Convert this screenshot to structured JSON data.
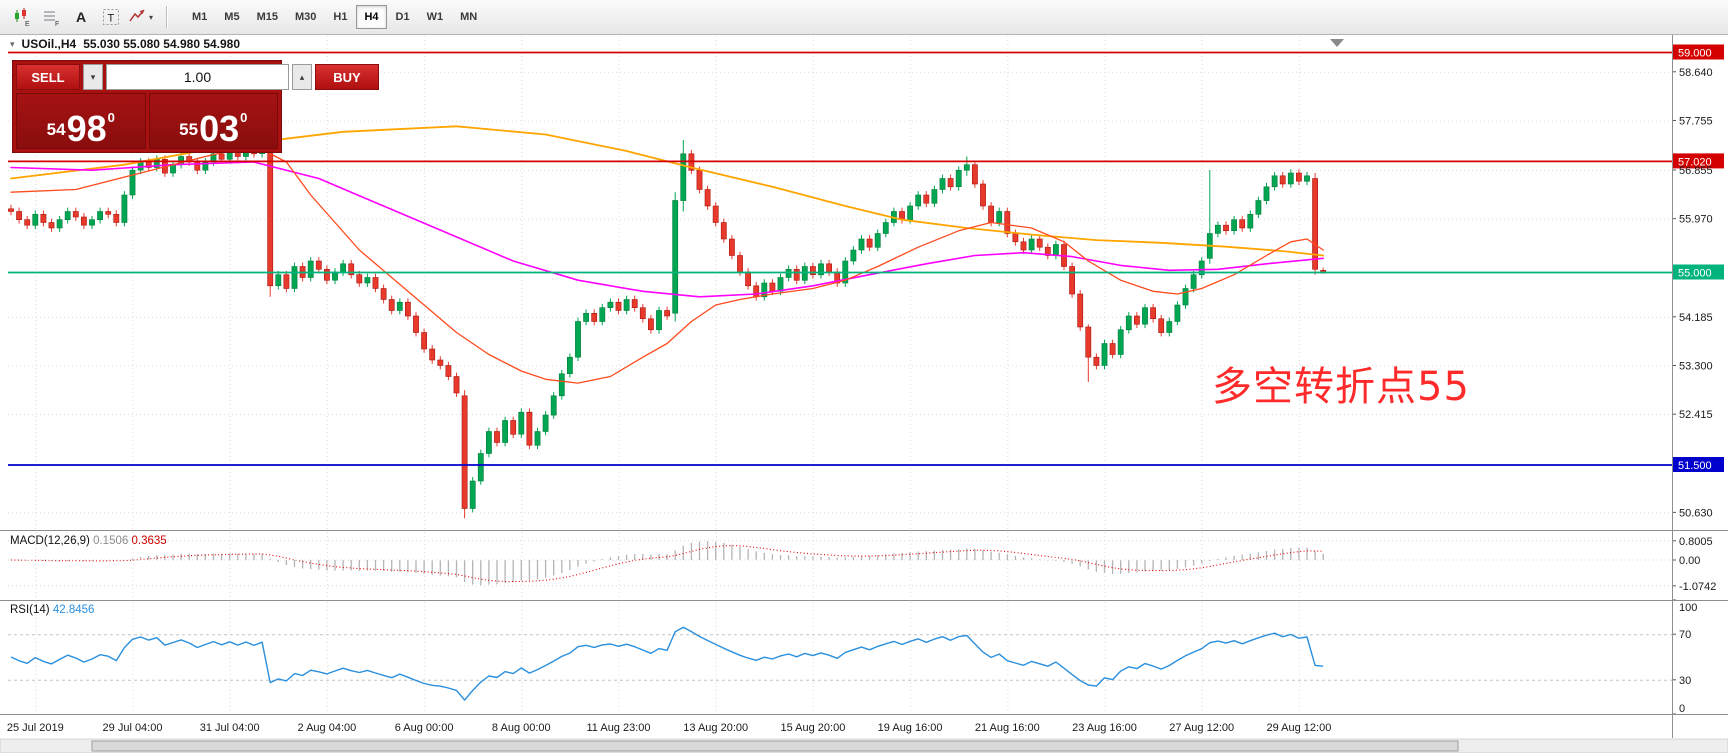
{
  "toolbar": {
    "timeframes": [
      "M1",
      "M5",
      "M15",
      "M30",
      "H1",
      "H4",
      "D1",
      "W1",
      "MN"
    ],
    "active_timeframe": "H4",
    "icons": [
      {
        "name": "chart-icon",
        "letter": "E"
      },
      {
        "name": "grid-icon",
        "letter": "F"
      },
      {
        "name": "font-icon",
        "letter": "A"
      },
      {
        "name": "text-icon",
        "letter": "T"
      },
      {
        "name": "indicators-icon",
        "letter": "▾"
      }
    ]
  },
  "chart_header": {
    "collapse_icon": "▾",
    "symbol": "USOil.,H4",
    "ohlc": "55.030 55.080 54.980 54.980"
  },
  "trade_panel": {
    "sell_label": "SELL",
    "buy_label": "BUY",
    "volume": "1.00",
    "spinner_down_icon": "▾",
    "spinner_up_icon": "▴",
    "sell_price": {
      "int": "54",
      "main": "98",
      "sup": "0"
    },
    "buy_price": {
      "int": "55",
      "main": "03",
      "sup": "0"
    }
  },
  "annotation": {
    "text": "多空转折点55",
    "color": "#ff2a2a"
  },
  "indicators": {
    "macd": {
      "name": "MACD(12,26,9)",
      "value_main": "0.1506",
      "value_signal": "0.3635",
      "axis_labels": [
        "0.8005",
        "0.00",
        "-1.0742"
      ]
    },
    "rsi": {
      "name": "RSI(14)",
      "value": "42.8456",
      "axis_labels": [
        "100",
        "70",
        "30",
        "0"
      ],
      "levels": [
        70,
        30
      ]
    }
  },
  "chart_data": {
    "type": "candlestick",
    "symbol": "USOil",
    "timeframe": "H4",
    "bull_color": "#00a651",
    "bear_color": "#e8392d",
    "price_axis_ticks": [
      "58.640",
      "57.755",
      "56.855",
      "55.970",
      "54.185",
      "53.300",
      "52.415",
      "50.630"
    ],
    "hlines": [
      {
        "price": 59.0,
        "label": "59.000",
        "color": "#d40000"
      },
      {
        "price": 57.02,
        "label": "57.020",
        "color": "#d40000"
      },
      {
        "price": 55.0,
        "label": "55.000",
        "color": "#00b37c"
      },
      {
        "price": 51.5,
        "label": "51.500",
        "color": "#0000cc"
      }
    ],
    "time_labels": [
      {
        "i": 3,
        "label": "25 Jul 2019"
      },
      {
        "i": 15,
        "label": "29 Jul 04:00"
      },
      {
        "i": 27,
        "label": "31 Jul 04:00"
      },
      {
        "i": 39,
        "label": "2 Aug 04:00"
      },
      {
        "i": 51,
        "label": "6 Aug 00:00"
      },
      {
        "i": 63,
        "label": "8 Aug 00:00"
      },
      {
        "i": 75,
        "label": "11 Aug 23:00"
      },
      {
        "i": 87,
        "label": "13 Aug 20:00"
      },
      {
        "i": 99,
        "label": "15 Aug 20:00"
      },
      {
        "i": 111,
        "label": "19 Aug 16:00"
      },
      {
        "i": 123,
        "label": "21 Aug 16:00"
      },
      {
        "i": 135,
        "label": "23 Aug 16:00"
      },
      {
        "i": 147,
        "label": "27 Aug 12:00"
      },
      {
        "i": 159,
        "label": "29 Aug 12:00"
      }
    ],
    "closes": [
      56.1,
      55.95,
      55.85,
      56.05,
      55.9,
      55.8,
      55.95,
      56.1,
      56.0,
      55.85,
      55.95,
      56.1,
      56.05,
      55.9,
      56.4,
      56.85,
      57.0,
      56.9,
      57.05,
      56.8,
      56.95,
      57.1,
      57.0,
      56.85,
      57.0,
      57.15,
      57.05,
      57.2,
      57.1,
      57.25,
      57.15,
      57.3,
      54.75,
      54.95,
      54.7,
      55.1,
      54.9,
      55.2,
      55.05,
      54.85,
      55.0,
      55.15,
      54.95,
      54.8,
      54.9,
      54.7,
      54.5,
      54.3,
      54.45,
      54.2,
      53.9,
      53.6,
      53.4,
      53.3,
      53.1,
      52.8,
      50.7,
      51.2,
      51.7,
      52.1,
      51.9,
      52.3,
      52.05,
      52.45,
      51.85,
      52.1,
      52.4,
      52.75,
      53.15,
      53.45,
      54.1,
      54.25,
      54.1,
      54.35,
      54.45,
      54.3,
      54.5,
      54.35,
      54.15,
      53.95,
      54.3,
      54.2,
      56.3,
      57.15,
      56.85,
      56.5,
      56.2,
      55.9,
      55.6,
      55.3,
      55.0,
      54.75,
      54.55,
      54.8,
      54.65,
      54.9,
      55.05,
      54.85,
      55.1,
      54.95,
      55.15,
      55.0,
      54.8,
      55.2,
      55.4,
      55.6,
      55.45,
      55.7,
      55.9,
      56.1,
      55.95,
      56.2,
      56.4,
      56.25,
      56.5,
      56.7,
      56.55,
      56.85,
      56.95,
      56.6,
      56.2,
      55.9,
      56.1,
      55.7,
      55.55,
      55.4,
      55.6,
      55.45,
      55.3,
      55.5,
      55.1,
      54.6,
      54.0,
      53.45,
      53.3,
      53.7,
      53.5,
      53.95,
      54.2,
      54.05,
      54.35,
      54.15,
      53.9,
      54.1,
      54.4,
      54.7,
      54.95,
      55.2,
      55.7,
      55.85,
      55.75,
      55.95,
      55.8,
      56.05,
      56.3,
      56.55,
      56.75,
      56.6,
      56.8,
      56.65,
      56.75,
      55.05,
      54.98
    ],
    "candle_overrides": {
      "32": [
        57.25,
        57.4,
        54.55,
        54.75
      ],
      "56": [
        52.75,
        52.85,
        50.52,
        50.7
      ],
      "82": [
        54.25,
        56.45,
        54.1,
        56.3
      ],
      "83": [
        56.3,
        57.4,
        56.1,
        57.15
      ],
      "118": [
        56.85,
        57.1,
        56.75,
        56.95
      ],
      "133": [
        54.0,
        54.05,
        53.0,
        53.45
      ],
      "148": [
        55.25,
        56.85,
        55.15,
        55.7
      ],
      "161": [
        56.7,
        56.8,
        54.95,
        55.05
      ],
      "162": [
        55.03,
        55.08,
        54.98,
        54.98
      ]
    },
    "ma_lines": [
      {
        "name": "ma-slow-orange",
        "color": "#ffa500",
        "width": 1.8,
        "points": [
          [
            0,
            56.7
          ],
          [
            14,
            56.95
          ],
          [
            27,
            57.3
          ],
          [
            41,
            57.55
          ],
          [
            55,
            57.65
          ],
          [
            66,
            57.5
          ],
          [
            76,
            57.2
          ],
          [
            84,
            56.9
          ],
          [
            94,
            56.55
          ],
          [
            103,
            56.2
          ],
          [
            110,
            55.95
          ],
          [
            118,
            55.8
          ],
          [
            126,
            55.68
          ],
          [
            134,
            55.58
          ],
          [
            142,
            55.53
          ],
          [
            150,
            55.46
          ],
          [
            157,
            55.38
          ],
          [
            162,
            55.3
          ]
        ]
      },
      {
        "name": "ma-medium-magenta",
        "color": "#ff00ff",
        "width": 1.6,
        "points": [
          [
            0,
            56.9
          ],
          [
            10,
            56.85
          ],
          [
            20,
            56.95
          ],
          [
            30,
            57.0
          ],
          [
            38,
            56.7
          ],
          [
            46,
            56.2
          ],
          [
            54,
            55.7
          ],
          [
            62,
            55.2
          ],
          [
            70,
            54.85
          ],
          [
            78,
            54.65
          ],
          [
            85,
            54.55
          ],
          [
            92,
            54.6
          ],
          [
            99,
            54.75
          ],
          [
            106,
            54.95
          ],
          [
            113,
            55.15
          ],
          [
            119,
            55.3
          ],
          [
            125,
            55.35
          ],
          [
            131,
            55.28
          ],
          [
            137,
            55.12
          ],
          [
            143,
            55.03
          ],
          [
            149,
            55.05
          ],
          [
            155,
            55.15
          ],
          [
            162,
            55.25
          ]
        ]
      },
      {
        "name": "ma-fast-red",
        "color": "#ff4a1c",
        "width": 1.3,
        "points": [
          [
            0,
            56.45
          ],
          [
            8,
            56.5
          ],
          [
            16,
            56.8
          ],
          [
            24,
            57.1
          ],
          [
            30,
            57.3
          ],
          [
            34,
            57.0
          ],
          [
            37,
            56.4
          ],
          [
            40,
            55.9
          ],
          [
            43,
            55.4
          ],
          [
            47,
            54.9
          ],
          [
            51,
            54.4
          ],
          [
            55,
            53.9
          ],
          [
            59,
            53.5
          ],
          [
            63,
            53.2
          ],
          [
            66,
            53.05
          ],
          [
            70,
            52.98
          ],
          [
            74,
            53.1
          ],
          [
            78,
            53.45
          ],
          [
            81,
            53.7
          ],
          [
            84,
            54.1
          ],
          [
            87,
            54.4
          ],
          [
            90,
            54.5
          ],
          [
            94,
            54.6
          ],
          [
            99,
            54.7
          ],
          [
            103,
            54.85
          ],
          [
            107,
            55.1
          ],
          [
            112,
            55.45
          ],
          [
            117,
            55.75
          ],
          [
            121,
            55.9
          ],
          [
            126,
            55.8
          ],
          [
            130,
            55.55
          ],
          [
            133,
            55.2
          ],
          [
            137,
            54.85
          ],
          [
            141,
            54.65
          ],
          [
            144,
            54.6
          ],
          [
            147,
            54.7
          ],
          [
            151,
            54.95
          ],
          [
            155,
            55.3
          ],
          [
            158,
            55.55
          ],
          [
            160,
            55.6
          ],
          [
            162,
            55.4
          ]
        ]
      }
    ],
    "macd": {
      "hist_color": "#b4b4b4",
      "signal_color": "#e00000"
    },
    "rsi": {
      "line_color": "#2a8fdd"
    }
  }
}
